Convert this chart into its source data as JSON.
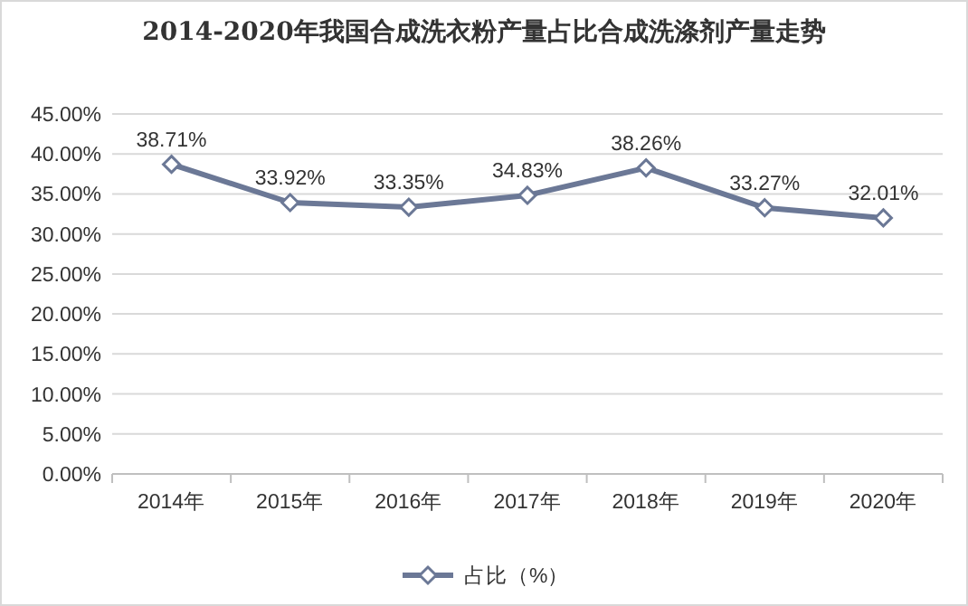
{
  "chart_data": {
    "type": "line",
    "title": "2014-2020年我国合成洗衣粉产量占比合成洗涤剂产量走势",
    "categories": [
      "2014年",
      "2015年",
      "2016年",
      "2017年",
      "2018年",
      "2019年",
      "2020年"
    ],
    "series": [
      {
        "name": "占比（%）",
        "color": "#6b7896",
        "values": [
          38.71,
          33.92,
          33.35,
          34.83,
          38.26,
          33.27,
          32.01
        ],
        "value_labels": [
          "38.71%",
          "33.92%",
          "33.35%",
          "34.83%",
          "38.26%",
          "33.27%",
          "32.01%"
        ]
      }
    ],
    "ylim": [
      0,
      45
    ],
    "yticks": [
      {
        "value": 0,
        "label": "0.00%"
      },
      {
        "value": 5,
        "label": "5.00%"
      },
      {
        "value": 10,
        "label": "10.00%"
      },
      {
        "value": 15,
        "label": "15.00%"
      },
      {
        "value": 20,
        "label": "20.00%"
      },
      {
        "value": 25,
        "label": "25.00%"
      },
      {
        "value": 30,
        "label": "30.00%"
      },
      {
        "value": 35,
        "label": "35.00%"
      },
      {
        "value": 40,
        "label": "40.00%"
      },
      {
        "value": 45,
        "label": "45.00%"
      }
    ],
    "grid": "y",
    "legend": "bottom",
    "marker": "diamond",
    "line_style": "solid"
  }
}
